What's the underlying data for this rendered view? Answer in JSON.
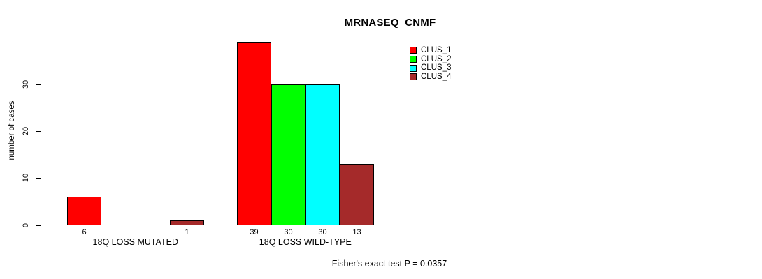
{
  "chart_data": {
    "type": "bar",
    "title": "MRNASEQ_CNMF",
    "ylabel": "number of cases",
    "xlabel": "",
    "categories": [
      "18Q LOSS MUTATED",
      "18Q LOSS WILD-TYPE"
    ],
    "series": [
      {
        "name": "CLUS_1",
        "color": "#FF0000",
        "values": [
          6,
          39
        ]
      },
      {
        "name": "CLUS_2",
        "color": "#00FF00",
        "values": [
          0,
          30
        ]
      },
      {
        "name": "CLUS_3",
        "color": "#00FFFF",
        "values": [
          0,
          30
        ]
      },
      {
        "name": "CLUS_4",
        "color": "#A52A2A",
        "values": [
          1,
          13
        ]
      }
    ],
    "bar_value_labels": {
      "show": true,
      "hide_zero": true
    },
    "yticks": [
      0,
      10,
      20,
      30
    ],
    "ylim": [
      0,
      39
    ],
    "grid": false,
    "legend_position": "top-right",
    "bar_border_color": "#000000",
    "axis_color": "#000000",
    "background_color": "#FFFFFF",
    "annotation": "Fisher's exact test P = 0.0357"
  }
}
